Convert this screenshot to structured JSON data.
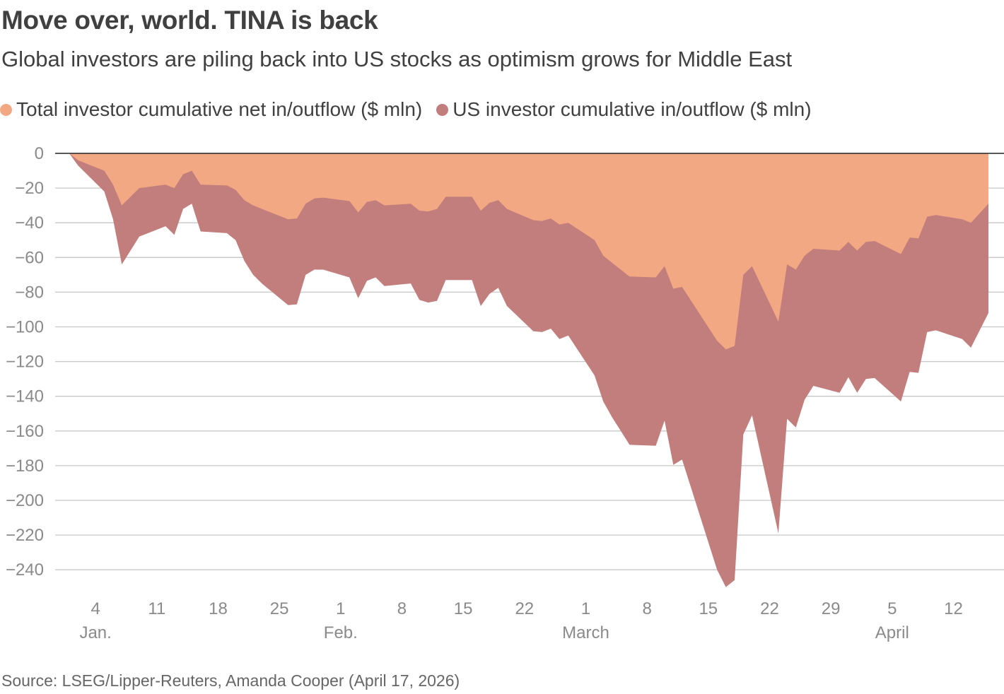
{
  "title": "Move over, world. TINA is back",
  "subtitle": "Global investors are piling back into US stocks as optimism grows for Middle East",
  "source": "Source: LSEG/Lipper-Reuters, Amanda Cooper (April 17, 2026)",
  "colors": {
    "total": "#f2a983",
    "us": "#c27e7c",
    "grid": "#c8c8c8",
    "zero_line": "#222222"
  },
  "chart_data": {
    "type": "area",
    "title": "Move over, world. TINA is back",
    "subtitle": "Global investors are piling back into US stocks as optimism grows for Middle East",
    "ylim": [
      -250,
      0
    ],
    "yticks": [
      0,
      -20,
      -40,
      -60,
      -80,
      -100,
      -120,
      -140,
      -160,
      -180,
      -200,
      -220,
      -240
    ],
    "ytick_labels": [
      "0",
      "−20",
      "−40",
      "−60",
      "−80",
      "−100",
      "−120",
      "−140",
      "−160",
      "−180",
      "−200",
      "−220",
      "−240"
    ],
    "xlim": [
      "2026-01-01",
      "2026-04-16"
    ],
    "xticks": [
      "2026-01-04",
      "2026-01-11",
      "2026-01-18",
      "2026-01-25",
      "2026-02-01",
      "2026-02-08",
      "2026-02-15",
      "2026-02-22",
      "2026-03-01",
      "2026-03-08",
      "2026-03-15",
      "2026-03-22",
      "2026-03-29",
      "2026-04-05",
      "2026-04-12"
    ],
    "xtick_labels": [
      "4",
      "11",
      "18",
      "25",
      "1",
      "8",
      "15",
      "22",
      "1",
      "8",
      "15",
      "22",
      "29",
      "5",
      "12"
    ],
    "month_labels": [
      {
        "label": "Jan.",
        "date": "2026-01-04"
      },
      {
        "label": "Feb.",
        "date": "2026-02-01"
      },
      {
        "label": "March",
        "date": "2026-03-01"
      },
      {
        "label": "April",
        "date": "2026-04-05"
      }
    ],
    "grid": true,
    "legend_position": "top-left",
    "series": [
      {
        "name": "Total investor cumulative net in/outflow ($ mln)",
        "color": "#f2a983",
        "points": [
          [
            "2026-01-01",
            0
          ],
          [
            "2026-01-02",
            -4
          ],
          [
            "2026-01-05",
            -10
          ],
          [
            "2026-01-06",
            -18
          ],
          [
            "2026-01-07",
            -30
          ],
          [
            "2026-01-09",
            -20
          ],
          [
            "2026-01-12",
            -18
          ],
          [
            "2026-01-13",
            -20
          ],
          [
            "2026-01-14",
            -12
          ],
          [
            "2026-01-15",
            -10
          ],
          [
            "2026-01-16",
            -18
          ],
          [
            "2026-01-19",
            -18.5
          ],
          [
            "2026-01-20",
            -21
          ],
          [
            "2026-01-21",
            -27
          ],
          [
            "2026-01-22",
            -30
          ],
          [
            "2026-01-23",
            -32
          ],
          [
            "2026-01-26",
            -38
          ],
          [
            "2026-01-27",
            -37.5
          ],
          [
            "2026-01-28",
            -29
          ],
          [
            "2026-01-29",
            -26
          ],
          [
            "2026-01-30",
            -25.5
          ],
          [
            "2026-02-02",
            -27.5
          ],
          [
            "2026-02-03",
            -34
          ],
          [
            "2026-02-04",
            -28
          ],
          [
            "2026-02-05",
            -27
          ],
          [
            "2026-02-06",
            -30
          ],
          [
            "2026-02-09",
            -29
          ],
          [
            "2026-02-10",
            -33
          ],
          [
            "2026-02-11",
            -33.5
          ],
          [
            "2026-02-12",
            -32
          ],
          [
            "2026-02-13",
            -25
          ],
          [
            "2026-02-16",
            -25
          ],
          [
            "2026-02-17",
            -33
          ],
          [
            "2026-02-18",
            -28.5
          ],
          [
            "2026-02-19",
            -27
          ],
          [
            "2026-02-20",
            -32
          ],
          [
            "2026-02-23",
            -38.5
          ],
          [
            "2026-02-24",
            -39
          ],
          [
            "2026-02-25",
            -37.5
          ],
          [
            "2026-02-26",
            -41
          ],
          [
            "2026-02-27",
            -40
          ],
          [
            "2026-03-02",
            -50
          ],
          [
            "2026-03-03",
            -59
          ],
          [
            "2026-03-04",
            -63
          ],
          [
            "2026-03-06",
            -71
          ],
          [
            "2026-03-09",
            -71.5
          ],
          [
            "2026-03-10",
            -65
          ],
          [
            "2026-03-11",
            -78
          ],
          [
            "2026-03-12",
            -77
          ],
          [
            "2026-03-16",
            -108
          ],
          [
            "2026-03-17",
            -113
          ],
          [
            "2026-03-18",
            -111
          ],
          [
            "2026-03-19",
            -70
          ],
          [
            "2026-03-20",
            -65
          ],
          [
            "2026-03-23",
            -97
          ],
          [
            "2026-03-24",
            -64
          ],
          [
            "2026-03-25",
            -67
          ],
          [
            "2026-03-26",
            -59
          ],
          [
            "2026-03-27",
            -55
          ],
          [
            "2026-03-30",
            -56
          ],
          [
            "2026-03-31",
            -51
          ],
          [
            "2026-04-01",
            -56
          ],
          [
            "2026-04-02",
            -51
          ],
          [
            "2026-04-03",
            -50.5
          ],
          [
            "2026-04-06",
            -58
          ],
          [
            "2026-04-07",
            -48.5
          ],
          [
            "2026-04-08",
            -49
          ],
          [
            "2026-04-09",
            -36.5
          ],
          [
            "2026-04-10",
            -35.5
          ],
          [
            "2026-04-13",
            -38
          ],
          [
            "2026-04-14",
            -40
          ],
          [
            "2026-04-16",
            -29
          ]
        ]
      },
      {
        "name": "US investor cumulative in/outflow ($ mln)",
        "color": "#c27e7c",
        "points": [
          [
            "2026-01-01",
            0
          ],
          [
            "2026-01-02",
            -7
          ],
          [
            "2026-01-05",
            -22
          ],
          [
            "2026-01-06",
            -38
          ],
          [
            "2026-01-07",
            -64
          ],
          [
            "2026-01-09",
            -48
          ],
          [
            "2026-01-12",
            -42
          ],
          [
            "2026-01-13",
            -47
          ],
          [
            "2026-01-14",
            -32
          ],
          [
            "2026-01-15",
            -29
          ],
          [
            "2026-01-16",
            -45
          ],
          [
            "2026-01-19",
            -46
          ],
          [
            "2026-01-20",
            -50
          ],
          [
            "2026-01-21",
            -62
          ],
          [
            "2026-01-22",
            -70
          ],
          [
            "2026-01-23",
            -75
          ],
          [
            "2026-01-26",
            -87.5
          ],
          [
            "2026-01-27",
            -87
          ],
          [
            "2026-01-28",
            -70
          ],
          [
            "2026-01-29",
            -67
          ],
          [
            "2026-01-30",
            -67
          ],
          [
            "2026-02-02",
            -71.5
          ],
          [
            "2026-02-03",
            -83.5
          ],
          [
            "2026-02-04",
            -73.5
          ],
          [
            "2026-02-05",
            -71.5
          ],
          [
            "2026-02-06",
            -76.5
          ],
          [
            "2026-02-09",
            -75
          ],
          [
            "2026-02-10",
            -84.5
          ],
          [
            "2026-02-11",
            -86
          ],
          [
            "2026-02-12",
            -85
          ],
          [
            "2026-02-13",
            -73
          ],
          [
            "2026-02-16",
            -73
          ],
          [
            "2026-02-17",
            -88
          ],
          [
            "2026-02-18",
            -81
          ],
          [
            "2026-02-19",
            -77.5
          ],
          [
            "2026-02-20",
            -88
          ],
          [
            "2026-02-23",
            -102.5
          ],
          [
            "2026-02-24",
            -103
          ],
          [
            "2026-02-25",
            -101
          ],
          [
            "2026-02-26",
            -107
          ],
          [
            "2026-02-27",
            -105
          ],
          [
            "2026-03-02",
            -128
          ],
          [
            "2026-03-03",
            -143
          ],
          [
            "2026-03-04",
            -152
          ],
          [
            "2026-03-05",
            -160
          ],
          [
            "2026-03-06",
            -168
          ],
          [
            "2026-03-09",
            -168.5
          ],
          [
            "2026-03-10",
            -154
          ],
          [
            "2026-03-11",
            -179.5
          ],
          [
            "2026-03-12",
            -176.5
          ],
          [
            "2026-03-16",
            -240
          ],
          [
            "2026-03-17",
            -250
          ],
          [
            "2026-03-18",
            -246
          ],
          [
            "2026-03-19",
            -162
          ],
          [
            "2026-03-20",
            -151
          ],
          [
            "2026-03-23",
            -219
          ],
          [
            "2026-03-24",
            -153
          ],
          [
            "2026-03-25",
            -158
          ],
          [
            "2026-03-26",
            -142
          ],
          [
            "2026-03-27",
            -134
          ],
          [
            "2026-03-30",
            -138
          ],
          [
            "2026-03-31",
            -129
          ],
          [
            "2026-04-01",
            -138
          ],
          [
            "2026-04-02",
            -130
          ],
          [
            "2026-04-03",
            -129.5
          ],
          [
            "2026-04-06",
            -143
          ],
          [
            "2026-04-07",
            -126
          ],
          [
            "2026-04-08",
            -126.5
          ],
          [
            "2026-04-09",
            -103
          ],
          [
            "2026-04-10",
            -102
          ],
          [
            "2026-04-13",
            -107
          ],
          [
            "2026-04-14",
            -112
          ],
          [
            "2026-04-16",
            -92
          ]
        ]
      }
    ]
  }
}
